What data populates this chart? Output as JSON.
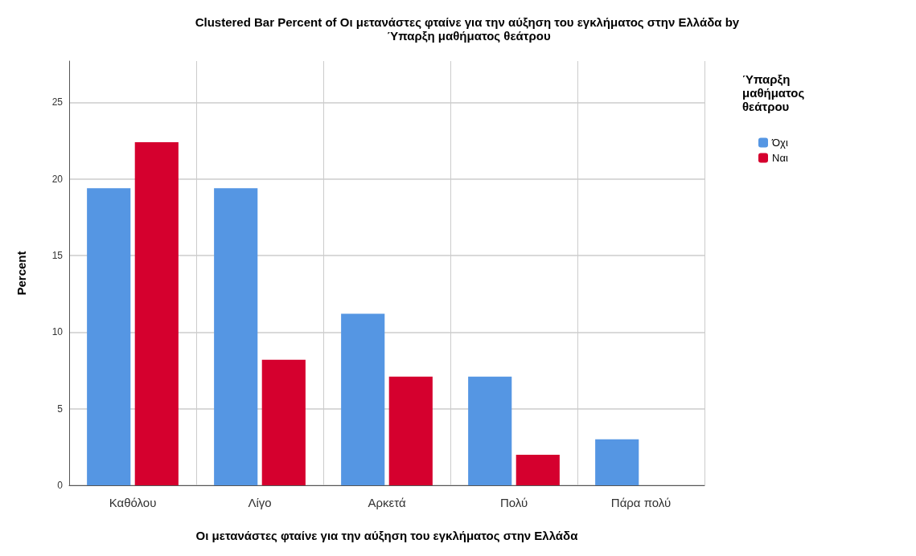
{
  "chart_data": {
    "type": "bar",
    "title": "Clustered Bar Percent of Οι μετανάστες φταίνε για την αύξηση του εγκλήματος στην Ελλάδα by Ύπαρξη μαθήματος θεάτρου",
    "xlabel": "Οι μετανάστες φταίνε για την αύξηση του εγκλήματος στην Ελλάδα",
    "ylabel": "Percent",
    "legend_title": "Ύπαρξη μαθήματος θεάτρου",
    "categories": [
      "Καθόλου",
      "Λίγο",
      "Αρκετά",
      "Πολύ",
      "Πάρα πολύ"
    ],
    "series": [
      {
        "name": "Όχι",
        "color": "#5596e3",
        "values": [
          19.4,
          19.4,
          11.2,
          7.1,
          3.0
        ]
      },
      {
        "name": "Ναι",
        "color": "#d5002e",
        "values": [
          22.4,
          8.2,
          7.1,
          2.0,
          null
        ]
      }
    ],
    "ylim": [
      0,
      27.7
    ],
    "yticks": [
      0,
      5,
      10,
      15,
      20,
      25
    ],
    "grid": true,
    "legend": "top right"
  }
}
